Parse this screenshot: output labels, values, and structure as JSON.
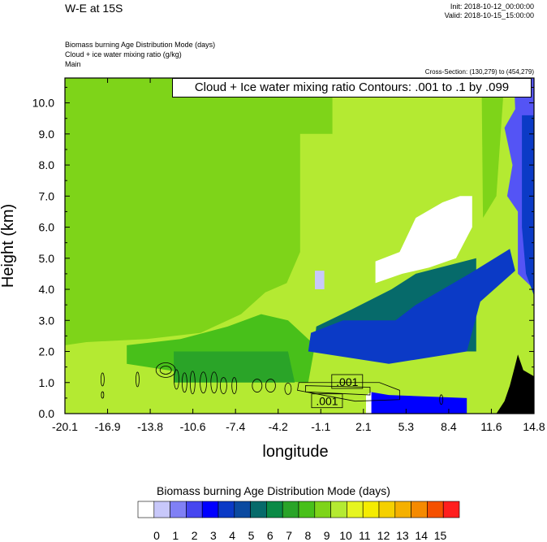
{
  "header": {
    "title": "W-E at 15S",
    "init": "Init: 2018-10-12_00:00:00",
    "valid": "Valid: 2018-10-15_15:00:00",
    "fields": [
      "Biomass burning Age Distribution Mode   (days)",
      "Cloud + ice water mixing ratio   (g/kg)",
      "Main"
    ],
    "cross_section": "Cross-Section: (130,279) to (454,279)"
  },
  "contour_info": "Cloud + Ice water mixing ratio Contours: .001 to .1 by .099",
  "contour_labels": [
    ".001",
    ".001"
  ],
  "colors": {
    "light_green": "#b4ea32",
    "green": "#7ed419",
    "mid_green": "#48c01a",
    "dark_green": "#2aa428",
    "teal": "#066a6a",
    "blue": "#0b3ac6",
    "bright_blue": "#0000ff",
    "violet": "#5454f5",
    "terrain": "#000000"
  },
  "chart_data": {
    "type": "heatmap",
    "title": "",
    "xlabel": "longitude",
    "ylabel": "Height (km)",
    "xlim": [
      -20.1,
      14.8
    ],
    "ylim": [
      0.0,
      10.8
    ],
    "xticks": [
      "-20.1",
      "-16.9",
      "-13.8",
      "-10.6",
      "-7.4",
      "-4.2",
      "-1.1",
      "2.1",
      "5.3",
      "8.4",
      "11.6",
      "14.8"
    ],
    "yticks": [
      "0.0",
      "1.0",
      "2.0",
      "3.0",
      "4.0",
      "5.0",
      "6.0",
      "7.0",
      "8.0",
      "9.0",
      "10.0"
    ],
    "colorbar": {
      "title": "Biomass burning Age Distribution Mode  (days)",
      "labels": [
        "0",
        "1",
        "2",
        "3",
        "4",
        "5",
        "6",
        "7",
        "8",
        "9",
        "10",
        "11",
        "12",
        "13",
        "14",
        "15"
      ],
      "colors": [
        "#ffffff",
        "#c8c8fa",
        "#8080f5",
        "#4646f0",
        "#0000ff",
        "#0b3ac6",
        "#0b4aa0",
        "#066a6a",
        "#0b8a46",
        "#2aa428",
        "#48c01a",
        "#7ed419",
        "#b4ea32",
        "#e6f520",
        "#f5ec00",
        "#f5d000",
        "#f5b000",
        "#f58a00",
        "#f55000",
        "#ff1e1e"
      ]
    }
  }
}
